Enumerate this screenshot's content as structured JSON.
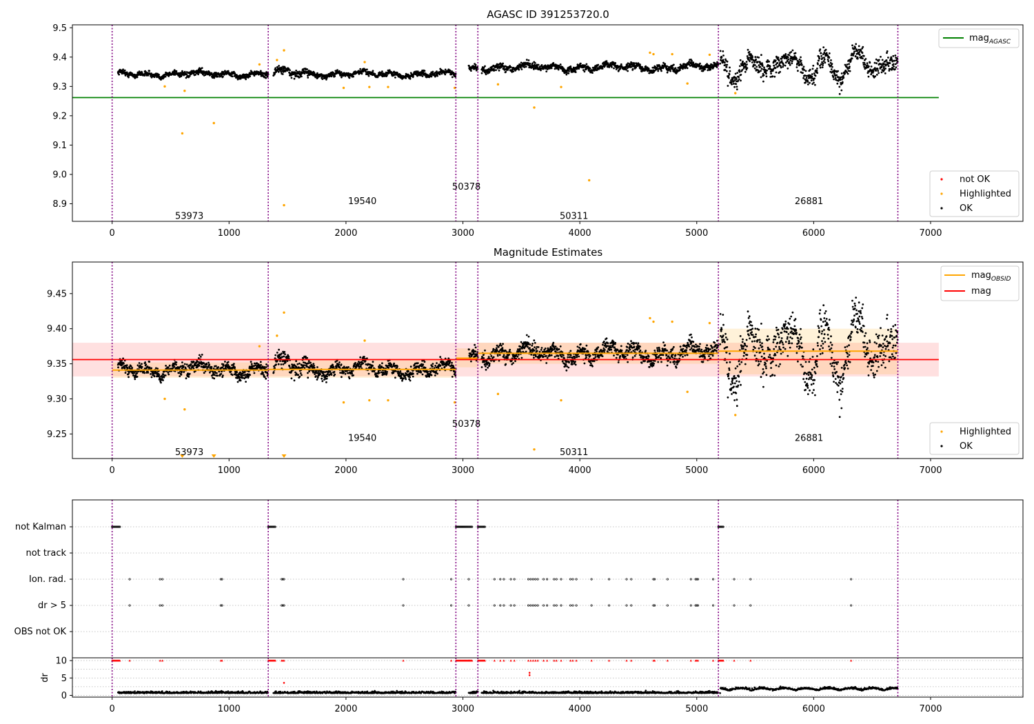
{
  "figure": {
    "title_top": "AGASC ID 391253720.0",
    "title_mid": "Magnitude Estimates"
  },
  "colors": {
    "ok": "#000000",
    "highlighted": "#ffa500",
    "not_ok": "#ff0000",
    "agasc_line": "#008000",
    "mag_line": "#ff0000",
    "obsid_line": "#ffa500",
    "boundary": "#800080",
    "grid": "#b0b0b0"
  },
  "legends": {
    "top_upper": {
      "main": "mag",
      "sub": "AGASC"
    },
    "top_lower": [
      "not OK",
      "Highlighted",
      "OK"
    ],
    "mid_upper": [
      {
        "main": "mag",
        "sub": "OBSID"
      },
      {
        "main": "mag",
        "sub": ""
      }
    ],
    "mid_lower": [
      "Highlighted",
      "OK"
    ]
  },
  "obs_labels": {
    "top": [
      {
        "text": "53973",
        "x": 660,
        "mag": 8.86
      },
      {
        "text": "19540",
        "x": 2140,
        "mag": 8.91
      },
      {
        "text": "50378",
        "x": 3030,
        "mag": 8.96
      },
      {
        "text": "50311",
        "x": 3950,
        "mag": 8.86
      },
      {
        "text": "26881",
        "x": 5960,
        "mag": 8.91
      }
    ],
    "mid": [
      {
        "text": "53973",
        "x": 660,
        "mag": 9.225
      },
      {
        "text": "19540",
        "x": 2140,
        "mag": 9.245
      },
      {
        "text": "50378",
        "x": 3030,
        "mag": 9.265
      },
      {
        "text": "50311",
        "x": 3950,
        "mag": 9.225
      },
      {
        "text": "26881",
        "x": 5960,
        "mag": 9.245
      }
    ]
  },
  "flag_labels": [
    "not Kalman",
    "not track",
    "Ion. rad.",
    "dr > 5",
    "OBS not OK"
  ],
  "dr_label": "dr",
  "chart_data": [
    {
      "type": "scatter",
      "panel": "top",
      "title": "AGASC ID 391253720.0",
      "xlim": [
        -340,
        7790
      ],
      "ylim": [
        8.84,
        9.51
      ],
      "xticks": [
        0,
        1000,
        2000,
        3000,
        4000,
        5000,
        6000,
        7000
      ],
      "yticks": [
        8.9,
        9.0,
        9.1,
        9.2,
        9.3,
        9.4,
        9.5
      ],
      "mag_agasc": 9.262,
      "mag_agasc_range": [
        -340,
        7070
      ],
      "observation_boundaries": [
        0,
        1335,
        2940,
        3128,
        5185,
        6720
      ],
      "ok_segments": [
        {
          "x0": 50,
          "x1": 1335,
          "mean": 9.342,
          "amp": 0.012
        },
        {
          "x0": 1380,
          "x1": 1700,
          "mean": 9.345,
          "amp": 0.018
        },
        {
          "x0": 1700,
          "x1": 2940,
          "mean": 9.342,
          "amp": 0.012
        },
        {
          "x0": 3050,
          "x1": 3128,
          "mean": 9.36,
          "amp": 0.012
        },
        {
          "x0": 3160,
          "x1": 5185,
          "mean": 9.365,
          "amp": 0.015
        },
        {
          "x0": 5200,
          "x1": 6720,
          "mean": 9.37,
          "amp": 0.035
        }
      ],
      "highlighted": [
        {
          "x": 450,
          "y": 9.3
        },
        {
          "x": 600,
          "y": 9.14
        },
        {
          "x": 620,
          "y": 9.285
        },
        {
          "x": 870,
          "y": 9.175
        },
        {
          "x": 1260,
          "y": 9.375
        },
        {
          "x": 1410,
          "y": 9.39
        },
        {
          "x": 1470,
          "y": 9.423
        },
        {
          "x": 1470,
          "y": 8.895
        },
        {
          "x": 1980,
          "y": 9.295
        },
        {
          "x": 2160,
          "y": 9.383
        },
        {
          "x": 2200,
          "y": 9.298
        },
        {
          "x": 2360,
          "y": 9.298
        },
        {
          "x": 2930,
          "y": 9.295
        },
        {
          "x": 3300,
          "y": 9.307
        },
        {
          "x": 3610,
          "y": 9.228
        },
        {
          "x": 3840,
          "y": 9.298
        },
        {
          "x": 4080,
          "y": 8.98
        },
        {
          "x": 4600,
          "y": 9.415
        },
        {
          "x": 4630,
          "y": 9.41
        },
        {
          "x": 4790,
          "y": 9.41
        },
        {
          "x": 4920,
          "y": 9.31
        },
        {
          "x": 5110,
          "y": 9.408
        },
        {
          "x": 5330,
          "y": 9.277
        }
      ]
    },
    {
      "type": "scatter",
      "panel": "middle",
      "title": "Magnitude Estimates",
      "xlim": [
        -340,
        7790
      ],
      "ylim": [
        9.215,
        9.495
      ],
      "xticks": [
        0,
        1000,
        2000,
        3000,
        4000,
        5000,
        6000,
        7000
      ],
      "yticks": [
        9.25,
        9.3,
        9.35,
        9.4,
        9.45
      ],
      "mag": 9.356,
      "mag_band": [
        9.332,
        9.38
      ],
      "mag_range": [
        -340,
        7070
      ],
      "mag_obsid_segments": [
        {
          "x0": 0,
          "x1": 1335,
          "y": 9.341,
          "band": [
            9.33,
            9.352
          ]
        },
        {
          "x0": 1335,
          "x1": 2940,
          "y": 9.342,
          "band": [
            9.33,
            9.355
          ]
        },
        {
          "x0": 2940,
          "x1": 3128,
          "y": 9.358,
          "band": [
            9.345,
            9.372
          ]
        },
        {
          "x0": 3128,
          "x1": 5185,
          "y": 9.365,
          "band": [
            9.35,
            9.38
          ]
        },
        {
          "x0": 5185,
          "x1": 6720,
          "y": 9.368,
          "band": [
            9.335,
            9.4
          ]
        }
      ],
      "highlighted_below_limit": [
        600,
        870,
        1470
      ]
    },
    {
      "type": "scatter",
      "panel": "flags",
      "categories": [
        "not Kalman",
        "not track",
        "Ion. rad.",
        "dr > 5",
        "OBS not OK"
      ],
      "not_kalman_ranges": [
        [
          0,
          70
        ],
        [
          1335,
          1400
        ],
        [
          2940,
          3080
        ],
        [
          3128,
          3190
        ],
        [
          5185,
          5230
        ]
      ],
      "ion_rad_times": [
        150,
        410,
        430,
        930,
        940,
        1450,
        1460,
        1470,
        2490,
        2900,
        3050,
        3270,
        3320,
        3350,
        3410,
        3440,
        3560,
        3580,
        3600,
        3620,
        3640,
        3690,
        3720,
        3780,
        3800,
        3840,
        3920,
        3940,
        3970,
        4100,
        4250,
        4400,
        4440,
        4630,
        4640,
        4750,
        4950,
        4990,
        5000,
        5010,
        5140,
        5320,
        5460,
        6320
      ]
    },
    {
      "type": "scatter",
      "panel": "dr",
      "ylabel": "dr",
      "xlim": [
        -340,
        7790
      ],
      "ylim": [
        -0.5,
        10.8
      ],
      "xticks": [
        0,
        1000,
        2000,
        3000,
        4000,
        5000,
        6000,
        7000
      ],
      "yticks": [
        0,
        5,
        10
      ],
      "dr_outliers": [
        {
          "x": 3570,
          "y": 6.5
        },
        {
          "x": 3570,
          "y": 5.8
        },
        {
          "x": 1470,
          "y": 3.6
        }
      ],
      "dr_clipped": 10
    }
  ]
}
